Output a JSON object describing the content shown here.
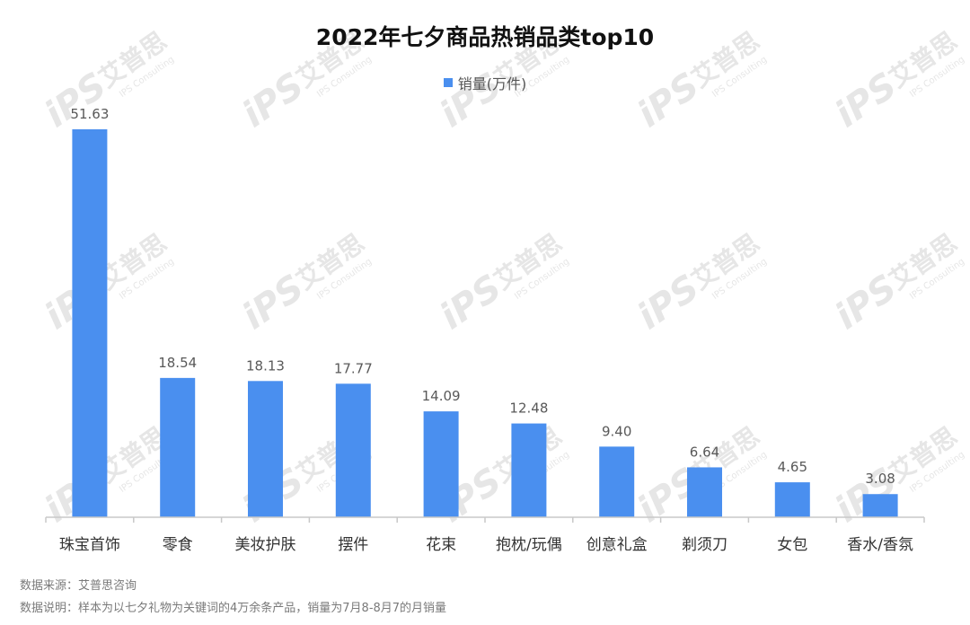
{
  "chart_data": {
    "type": "bar",
    "title": "2022年七夕商品热销品类top10",
    "categories": [
      "珠宝首饰",
      "零食",
      "美妆护肤",
      "摆件",
      "花束",
      "抱枕/玩偶",
      "创意礼盒",
      "剃须刀",
      "女包",
      "香水/香氛"
    ],
    "series": [
      {
        "name": "销量(万件)",
        "values": [
          51.63,
          18.54,
          18.13,
          17.77,
          14.09,
          12.48,
          9.4,
          6.64,
          4.65,
          3.08
        ],
        "labels": [
          "51.63",
          "18.54",
          "18.13",
          "17.77",
          "14.09",
          "12.48",
          "9.40",
          "6.64",
          "4.65",
          "3.08"
        ]
      }
    ],
    "ylim": [
      0,
      52
    ],
    "grid": false,
    "legend_position": "top-center"
  },
  "colors": {
    "bar": "#4a8fef",
    "axis": "#c8c8c8",
    "label": "#595959",
    "watermark": "#e6e6e6"
  },
  "footnotes": {
    "source": "数据来源：艾普思咨询",
    "sample": "数据说明：样本为以七夕礼物为关键词的4万余条产品，销量为7月8-8月7的月销量"
  },
  "watermark": {
    "logo": "iPS",
    "brand": "艾普思",
    "sub": "IPS Consulting"
  }
}
